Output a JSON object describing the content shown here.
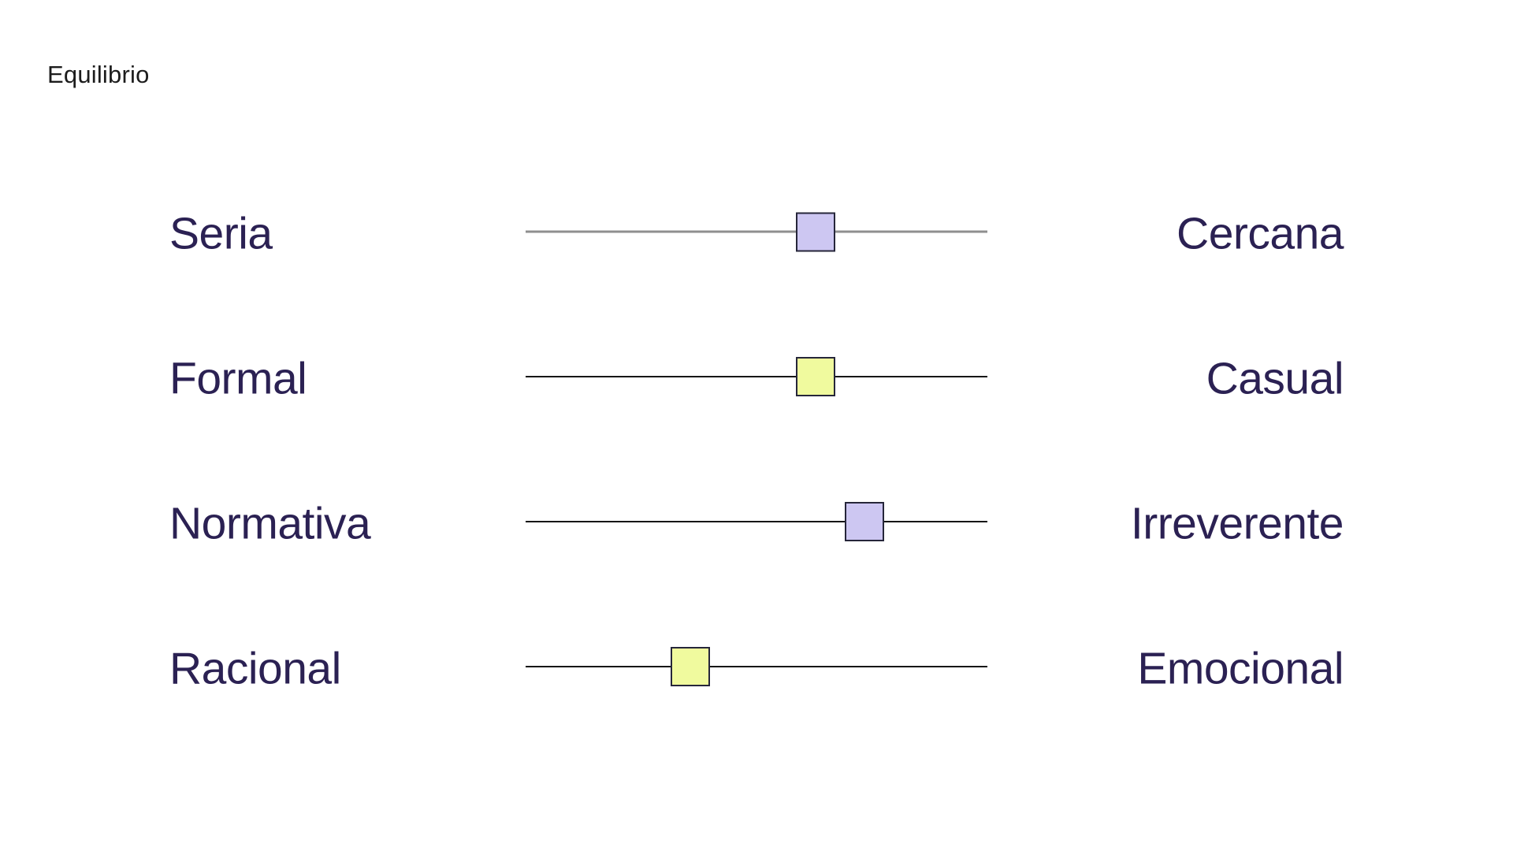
{
  "title": "Equilibrio",
  "colors": {
    "background": "#ffffff",
    "title_text": "#1c1c1c",
    "label_text": "#2b2153",
    "handle_border": "#26263a",
    "lavender_fill": "#cdc7f2",
    "yellow_fill": "#f0fa9e",
    "track_gray": "#8f8f8f",
    "track_black": "#161616"
  },
  "rows": [
    {
      "left": "Seria",
      "right": "Cercana",
      "value_percent": 62.8,
      "handle_color": "#cdc7f2",
      "track_color": "#8f8f8f",
      "track_thickness": 3
    },
    {
      "left": "Formal",
      "right": "Casual",
      "value_percent": 62.8,
      "handle_color": "#f0fa9e",
      "track_color": "#161616",
      "track_thickness": 2
    },
    {
      "left": "Normativa",
      "right": "Irreverente",
      "value_percent": 73.4,
      "handle_color": "#cdc7f2",
      "track_color": "#161616",
      "track_thickness": 2
    },
    {
      "left": "Racional",
      "right": "Emocional",
      "value_percent": 35.7,
      "handle_color": "#f0fa9e",
      "track_color": "#161616",
      "track_thickness": 2
    }
  ],
  "chart_data": {
    "type": "scatter",
    "title": "Equilibrio",
    "subtitle": "",
    "xlabel": "",
    "ylabel": "",
    "x_range": [
      0,
      100
    ],
    "grid": false,
    "legend": "none",
    "note": "Four horizontal semantic-differential sliders; value is handle position as percent from left pole to right pole",
    "categories": [
      "Seria – Cercana",
      "Formal – Casual",
      "Normativa – Irreverente",
      "Racional – Emocional"
    ],
    "values": [
      62.8,
      62.8,
      73.4,
      35.7
    ],
    "series": [
      {
        "name": "handle-position-percent",
        "values": [
          62.8,
          62.8,
          73.4,
          35.7
        ]
      }
    ]
  }
}
